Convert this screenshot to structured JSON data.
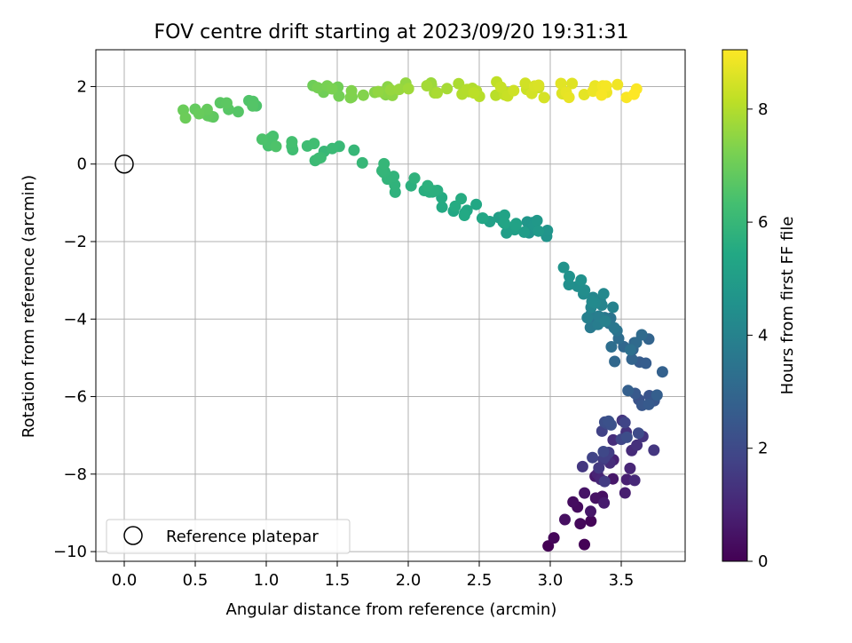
{
  "chart_data": {
    "type": "scatter",
    "title": "FOV centre drift starting at 2023/09/20 19:31:31",
    "xlabel": "Angular distance from reference (arcmin)",
    "ylabel": "Rotation from reference (arcmin)",
    "xlim": [
      -0.2,
      3.95
    ],
    "ylim": [
      -10.25,
      2.95
    ],
    "xticks": [
      0.0,
      0.5,
      1.0,
      1.5,
      2.0,
      2.5,
      3.0,
      3.5
    ],
    "xtick_labels": [
      "0.0",
      "0.5",
      "1.0",
      "1.5",
      "2.0",
      "2.5",
      "3.0",
      "3.5"
    ],
    "yticks": [
      -10,
      -8,
      -6,
      -4,
      -2,
      0,
      2
    ],
    "ytick_labels": [
      "−10",
      "−8",
      "−6",
      "−4",
      "−2",
      "0",
      "2"
    ],
    "grid": true,
    "colormap": "viridis",
    "colorbar": {
      "label": "Hours from first FF file",
      "min": 0,
      "max": 9.05,
      "ticks": [
        0,
        2,
        4,
        6,
        8
      ],
      "tick_labels": [
        "0",
        "2",
        "4",
        "6",
        "8"
      ]
    },
    "reference": {
      "x": 0.0,
      "y": 0.0,
      "name": "Reference platepar"
    },
    "legend": {
      "position": "lower-left",
      "entries": [
        "Reference platepar"
      ]
    },
    "segments": [
      {
        "count": 30,
        "t0": 0.0,
        "t1": 1.45,
        "x0": 3.1,
        "x1": 3.65,
        "y0": -9.6,
        "y1": -7.0,
        "xj": 0.16,
        "yj": 0.5
      },
      {
        "count": 30,
        "t0": 1.45,
        "t1": 2.9,
        "x0": 3.3,
        "x1": 3.75,
        "y0": -8.0,
        "y1": -5.0,
        "xj": 0.16,
        "yj": 0.55
      },
      {
        "count": 22,
        "t0": 2.9,
        "t1": 4.0,
        "x0": 3.6,
        "x1": 3.3,
        "y0": -5.0,
        "y1": -3.7,
        "xj": 0.12,
        "yj": 0.35
      },
      {
        "count": 14,
        "t0": 4.0,
        "t1": 4.6,
        "x0": 3.4,
        "x1": 3.1,
        "y0": -3.9,
        "y1": -2.7,
        "xj": 0.08,
        "yj": 0.25
      },
      {
        "count": 24,
        "t0": 4.6,
        "t1": 5.4,
        "x0": 2.95,
        "x1": 2.5,
        "y0": -1.8,
        "y1": -1.3,
        "xj": 0.15,
        "yj": 0.25
      },
      {
        "count": 24,
        "t0": 5.4,
        "t1": 6.0,
        "x0": 2.45,
        "x1": 1.7,
        "y0": -1.2,
        "y1": -0.1,
        "xj": 0.12,
        "yj": 0.25
      },
      {
        "count": 18,
        "t0": 6.0,
        "t1": 6.5,
        "x0": 1.55,
        "x1": 0.95,
        "y0": 0.2,
        "y1": 0.7,
        "xj": 0.12,
        "yj": 0.25
      },
      {
        "count": 16,
        "t0": 6.5,
        "t1": 7.0,
        "x0": 0.95,
        "x1": 0.42,
        "y0": 1.6,
        "y1": 1.2,
        "xj": 0.08,
        "yj": 0.18
      },
      {
        "count": 32,
        "t0": 7.0,
        "t1": 8.0,
        "x0": 1.3,
        "x1": 2.4,
        "y0": 1.85,
        "y1": 1.95,
        "xj": 0.12,
        "yj": 0.18
      },
      {
        "count": 36,
        "t0": 8.0,
        "t1": 9.05,
        "x0": 2.45,
        "x1": 3.55,
        "y0": 1.95,
        "y1": 1.85,
        "xj": 0.12,
        "yj": 0.2
      }
    ]
  }
}
